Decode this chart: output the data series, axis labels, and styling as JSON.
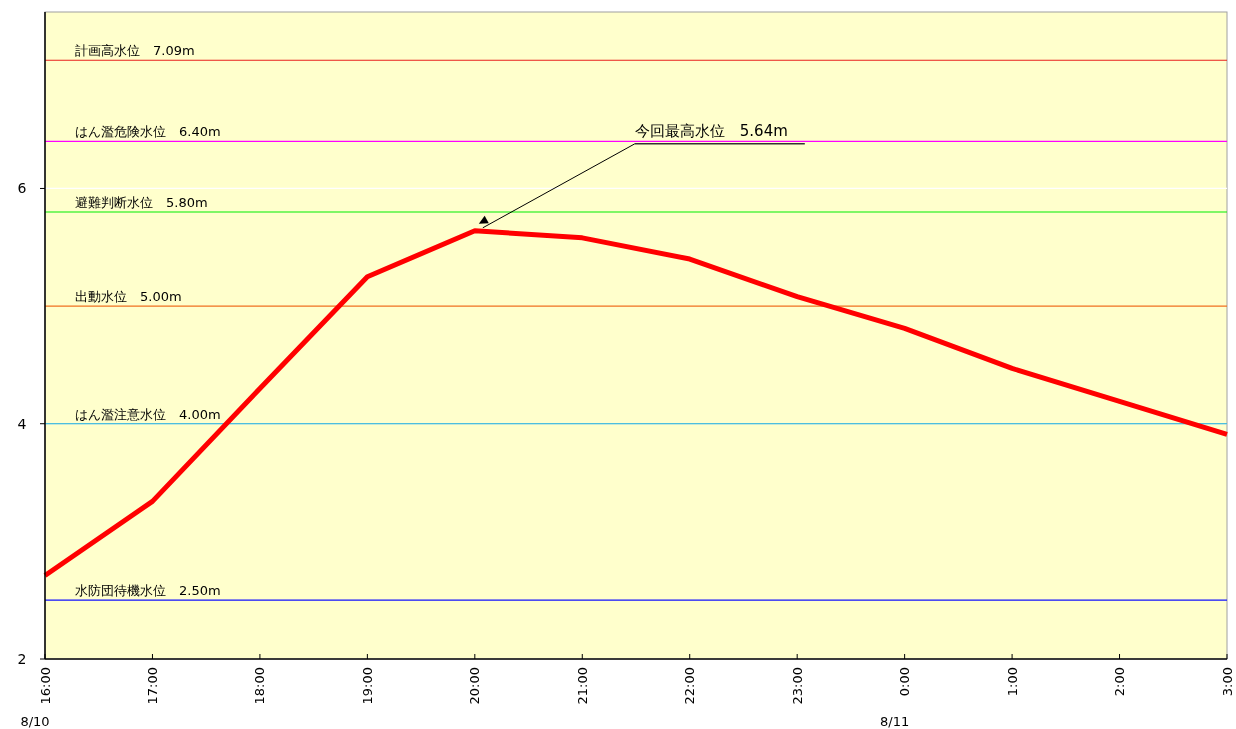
{
  "chart_data": {
    "type": "line",
    "x": [
      "--08-10T16:00",
      "--08-10T17:00",
      "--08-10T18:00",
      "--08-10T19:00",
      "--08-10T20:00",
      "--08-10T21:00",
      "--08-10T22:00",
      "--08-10T23:00",
      "--08-11T00:00",
      "--08-11T01:00",
      "--08-11T02:00",
      "--08-11T03:00"
    ],
    "series": [
      {
        "color": "#ff0000",
        "values": [
          2.71,
          3.34,
          4.3,
          5.25,
          5.64,
          5.58,
          5.4,
          5.08,
          4.81,
          4.47,
          4.19,
          3.91
        ]
      }
    ],
    "xlim": [
      "--08-10T16:00",
      "--08-11T03:00"
    ],
    "xticks": [
      {
        "value": "--08-10T16:00",
        "label": "16:00"
      },
      {
        "value": "--08-10T17:00",
        "label": "17:00"
      },
      {
        "value": "--08-10T18:00",
        "label": "18:00"
      },
      {
        "value": "--08-10T19:00",
        "label": "19:00"
      },
      {
        "value": "--08-10T20:00",
        "label": "20:00"
      },
      {
        "value": "--08-10T21:00",
        "label": "21:00"
      },
      {
        "value": "--08-10T22:00",
        "label": "22:00"
      },
      {
        "value": "--08-10T23:00",
        "label": "23:00"
      },
      {
        "value": "--08-11T00:00",
        "label": "0:00"
      },
      {
        "value": "--08-11T01:00",
        "label": "1:00"
      },
      {
        "value": "--08-11T02:00",
        "label": "2:00"
      },
      {
        "value": "--08-11T03:00",
        "label": "3:00"
      }
    ],
    "ylim": [
      2,
      7.5
    ],
    "yticks": [
      2,
      4,
      6
    ],
    "grid": "y",
    "marker": "none",
    "line_style": "solid",
    "ref_lines": [
      {
        "axis": "y",
        "value": 7.09,
        "label": "計画高水位　7.09m",
        "color": "#e8201c"
      },
      {
        "axis": "y",
        "value": 6.4,
        "label": "はん濫危険水位　6.40m",
        "color": "#ff00ff"
      },
      {
        "axis": "y",
        "value": 5.8,
        "label": "避難判断水位　5.80m",
        "color": "#00ee00"
      },
      {
        "axis": "y",
        "value": 5.0,
        "label": "出動水位　5.00m",
        "color": "#f07020"
      },
      {
        "axis": "y",
        "value": 4.0,
        "label": "はん濫注意水位　4.00m",
        "color": "#10a8d8"
      },
      {
        "axis": "y",
        "value": 2.5,
        "label": "水防団待機水位　2.50m",
        "color": "#1010ff"
      }
    ],
    "annotations": [
      {
        "text": "今回最高水位　5.64m",
        "x": "--08-10T20:00",
        "y": 5.64
      },
      "8/10",
      "8/11"
    ]
  }
}
